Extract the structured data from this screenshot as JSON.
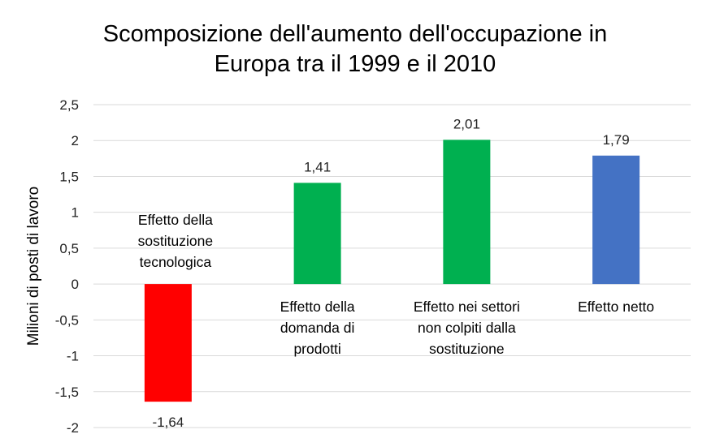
{
  "chart_data": {
    "type": "bar",
    "title": [
      "Scomposizione dell'aumento dell'occupazione in",
      "Europa tra il 1999 e il 2010"
    ],
    "xlabel": "",
    "ylabel": "Milioni di posti di lavoro",
    "ylim": [
      -2,
      2.5
    ],
    "yticks": [
      2.5,
      2,
      1.5,
      1,
      0.5,
      0,
      -0.5,
      -1,
      -1.5,
      -2
    ],
    "ytick_labels": [
      "2,5",
      "2",
      "1,5",
      "1",
      "0,5",
      "0",
      "-0,5",
      "-1",
      "-1,5",
      "-2"
    ],
    "grid": true,
    "categories": [
      [
        "Effetto della",
        "sostituzione",
        "tecnologica"
      ],
      [
        "Effetto della",
        "domanda di",
        "prodotti"
      ],
      [
        "Effetto nei settori",
        "non colpiti dalla",
        "sostituzione"
      ],
      [
        "Effetto netto"
      ]
    ],
    "values": [
      -1.64,
      1.41,
      2.01,
      1.79
    ],
    "data_labels": [
      "-1,64",
      "1,41",
      "2,01",
      "1,79"
    ],
    "colors": [
      "#FF0000",
      "#00B050",
      "#00B050",
      "#4472C4"
    ]
  }
}
